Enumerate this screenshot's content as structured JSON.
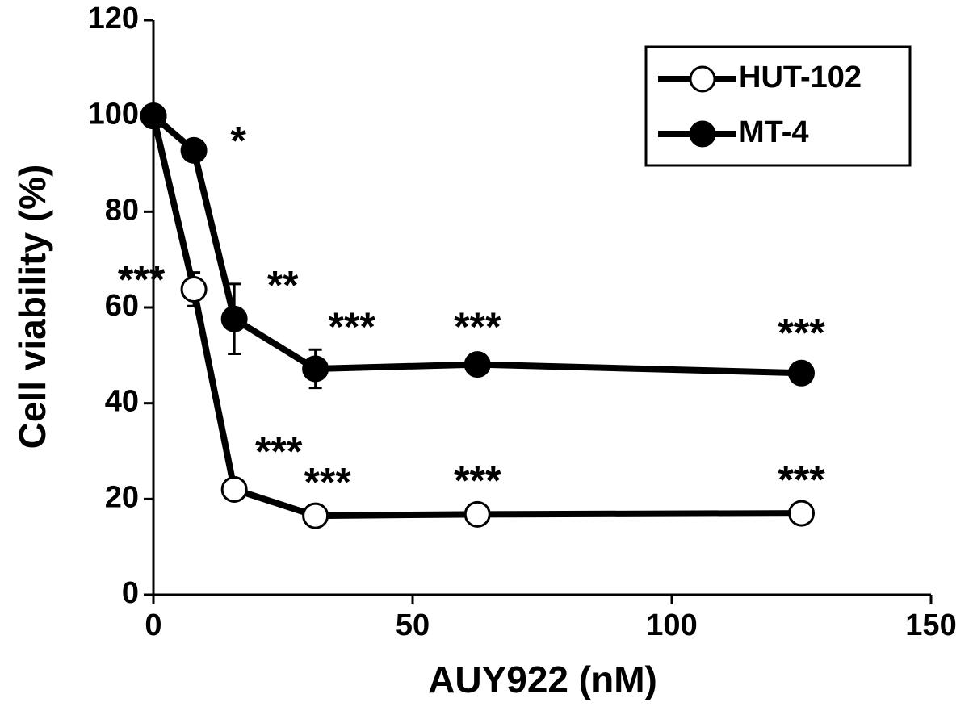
{
  "chart_data": {
    "type": "line",
    "x_label": "AUY922 (nM)",
    "y_label": "Cell viability (%)",
    "x": [
      0,
      7.8,
      15.6,
      31.25,
      62.5,
      125
    ],
    "series": [
      {
        "name": "HUT-102",
        "color": "#000000",
        "marker_fill": "#ffffff",
        "values": [
          100,
          63.8,
          22,
          16.5,
          16.8,
          17
        ],
        "errors": [
          1,
          3.5,
          1,
          1,
          1,
          1
        ],
        "annotations": [
          null,
          "***",
          "***",
          "***",
          "***",
          "***"
        ]
      },
      {
        "name": "MT-4",
        "color": "#000000",
        "marker_fill": "#000000",
        "values": [
          100,
          92.8,
          57.6,
          47.2,
          48.1,
          46.3
        ],
        "errors": [
          1,
          1,
          7.3,
          4,
          1,
          1
        ],
        "annotations": [
          null,
          "*",
          "**",
          "***",
          "***",
          "***"
        ]
      }
    ],
    "xlim": [
      0,
      150
    ],
    "xticks": [
      0,
      50,
      100,
      150
    ],
    "ylim": [
      0,
      120
    ],
    "yticks": [
      0,
      20,
      40,
      60,
      80,
      100,
      120
    ],
    "grid": false,
    "legend": "upper right"
  }
}
